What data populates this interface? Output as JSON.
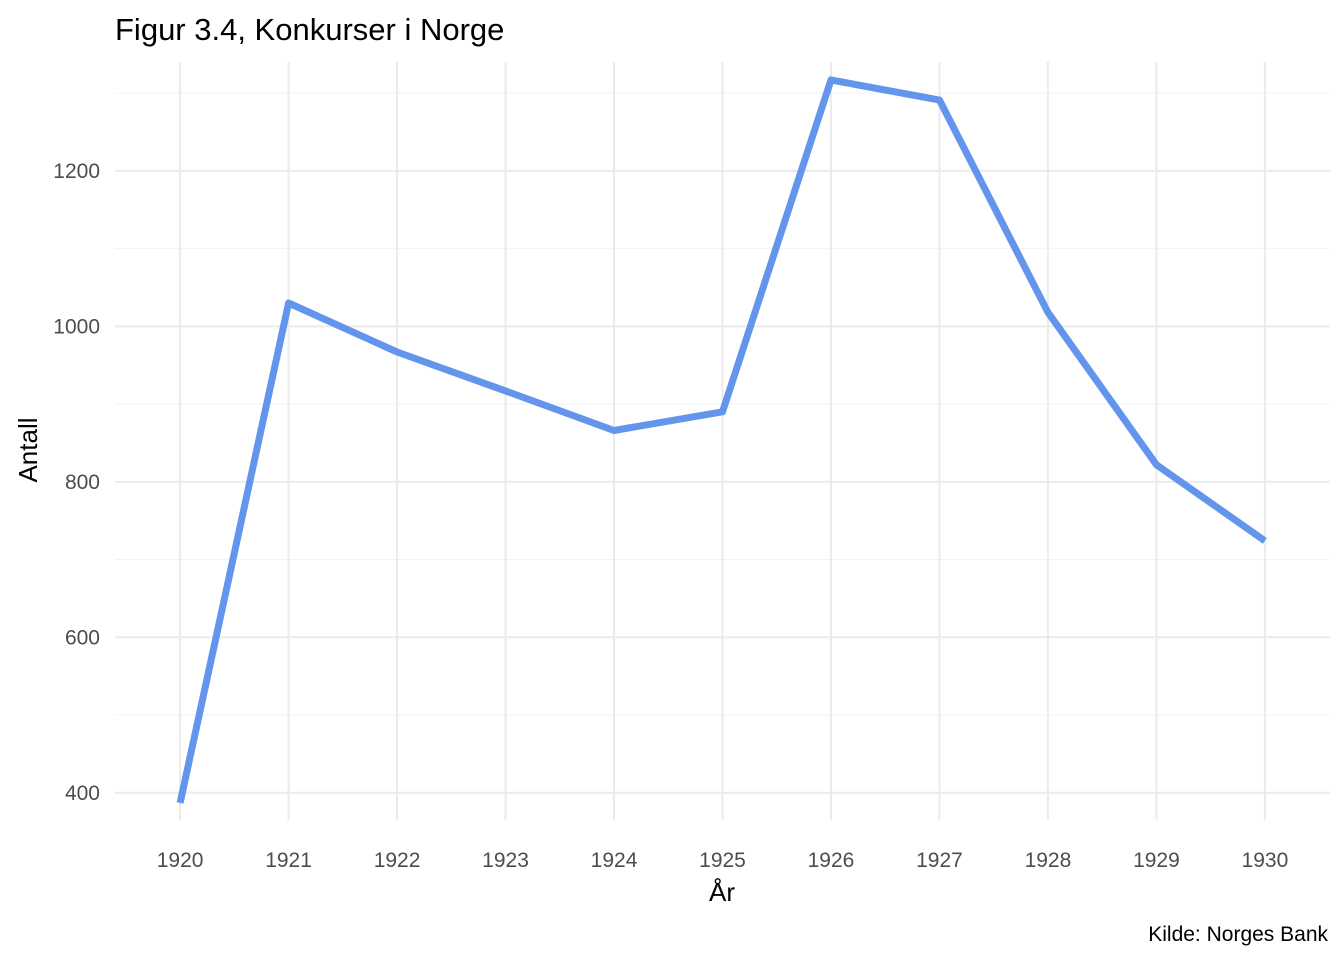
{
  "chart_data": {
    "type": "line",
    "title": "Figur 3.4, Konkurser i Norge",
    "xlabel": "År",
    "ylabel": "Antall",
    "caption": "Kilde: Norges Bank",
    "x": [
      1920,
      1921,
      1922,
      1923,
      1924,
      1925,
      1926,
      1927,
      1928,
      1929,
      1930
    ],
    "x_tick_labels": [
      "1920",
      "1921",
      "1922",
      "1923",
      "1924",
      "1925",
      "1926",
      "1927",
      "1928",
      "1929",
      "1930"
    ],
    "y_ticks": [
      400,
      600,
      800,
      1000,
      1200
    ],
    "y_tick_labels": [
      "400",
      "600",
      "800",
      "1000",
      "1200"
    ],
    "series": [
      {
        "values": [
          387,
          1030,
          967,
          917,
          866,
          890,
          1317,
          1291,
          1018,
          822,
          724
        ],
        "color": "#6495ED"
      }
    ],
    "xlim": [
      1919.4,
      1930.6
    ],
    "ylim": [
      365,
      1340
    ],
    "grid": true,
    "legend": "none"
  }
}
